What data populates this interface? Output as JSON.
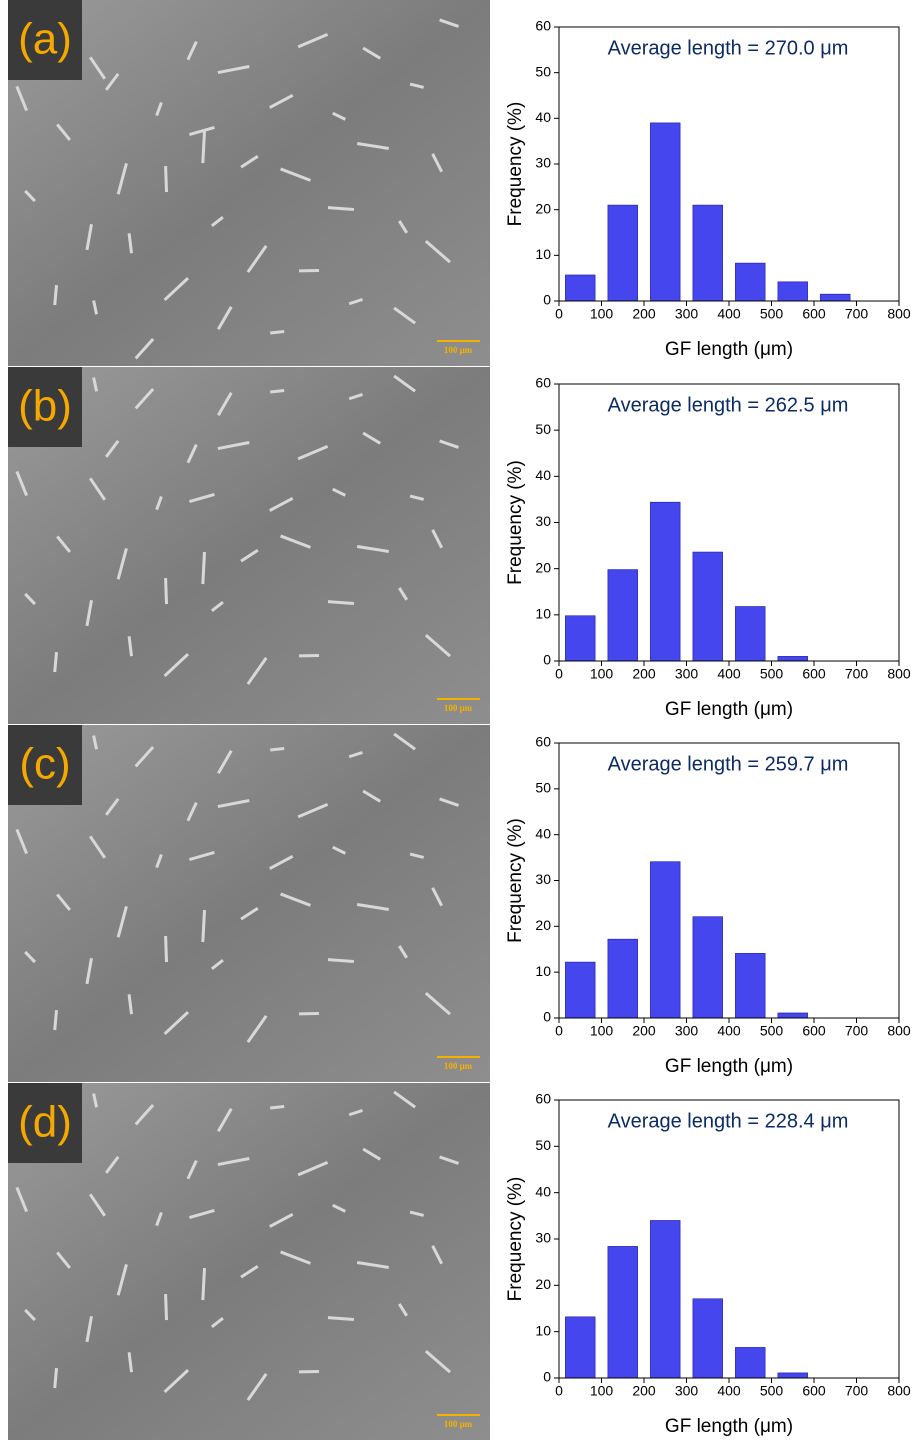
{
  "chart_data": [
    {
      "type": "histogram",
      "panel_label": "(a)",
      "scale_bar": "100 μm",
      "annotation": "Average length = 270.0 μm",
      "xlabel": "GF length (μm)",
      "ylabel": "Frequency (%)",
      "bins": [
        0,
        100,
        200,
        300,
        400,
        500,
        600,
        700,
        800
      ],
      "values": [
        5.7,
        21,
        39,
        21,
        8.3,
        4.2,
        1.5,
        0
      ],
      "color": "#4646ee",
      "xlim": [
        0,
        800
      ],
      "ylim": [
        0,
        60
      ],
      "xticks": [
        0,
        100,
        200,
        300,
        400,
        500,
        600,
        700,
        800
      ],
      "yticks": [
        0,
        10,
        20,
        30,
        40,
        50,
        60
      ]
    },
    {
      "type": "histogram",
      "panel_label": "(b)",
      "scale_bar": "100 μm",
      "annotation": "Average length = 262.5 μm",
      "xlabel": "GF length (μm)",
      "ylabel": "Frequency (%)",
      "bins": [
        0,
        100,
        200,
        300,
        400,
        500,
        600,
        700,
        800
      ],
      "values": [
        9.8,
        19.8,
        34.4,
        23.6,
        11.8,
        1,
        0,
        0
      ],
      "color": "#4646ee",
      "xlim": [
        0,
        800
      ],
      "ylim": [
        0,
        60
      ],
      "xticks": [
        0,
        100,
        200,
        300,
        400,
        500,
        600,
        700,
        800
      ],
      "yticks": [
        0,
        10,
        20,
        30,
        40,
        50,
        60
      ]
    },
    {
      "type": "histogram",
      "panel_label": "(c)",
      "scale_bar": "100 μm",
      "annotation": "Average length = 259.7 μm",
      "xlabel": "GF length (μm)",
      "ylabel": "Frequency (%)",
      "bins": [
        0,
        100,
        200,
        300,
        400,
        500,
        600,
        700,
        800
      ],
      "values": [
        12.2,
        17.2,
        34.1,
        22.1,
        14.1,
        1.1,
        0,
        0
      ],
      "color": "#4646ee",
      "xlim": [
        0,
        800
      ],
      "ylim": [
        0,
        60
      ],
      "xticks": [
        0,
        100,
        200,
        300,
        400,
        500,
        600,
        700,
        800
      ],
      "yticks": [
        0,
        10,
        20,
        30,
        40,
        50,
        60
      ]
    },
    {
      "type": "histogram",
      "panel_label": "(d)",
      "scale_bar": "100 μm",
      "annotation": "Average length = 228.4 μm",
      "xlabel": "GF length (μm)",
      "ylabel": "Frequency (%)",
      "bins": [
        0,
        100,
        200,
        300,
        400,
        500,
        600,
        700,
        800
      ],
      "values": [
        13.2,
        28.4,
        34.0,
        17.1,
        6.6,
        1.1,
        0,
        0
      ],
      "color": "#4646ee",
      "xlim": [
        0,
        800
      ],
      "ylim": [
        0,
        60
      ],
      "xticks": [
        0,
        100,
        200,
        300,
        400,
        500,
        600,
        700,
        800
      ],
      "yticks": [
        0,
        10,
        20,
        30,
        40,
        50,
        60
      ]
    }
  ]
}
